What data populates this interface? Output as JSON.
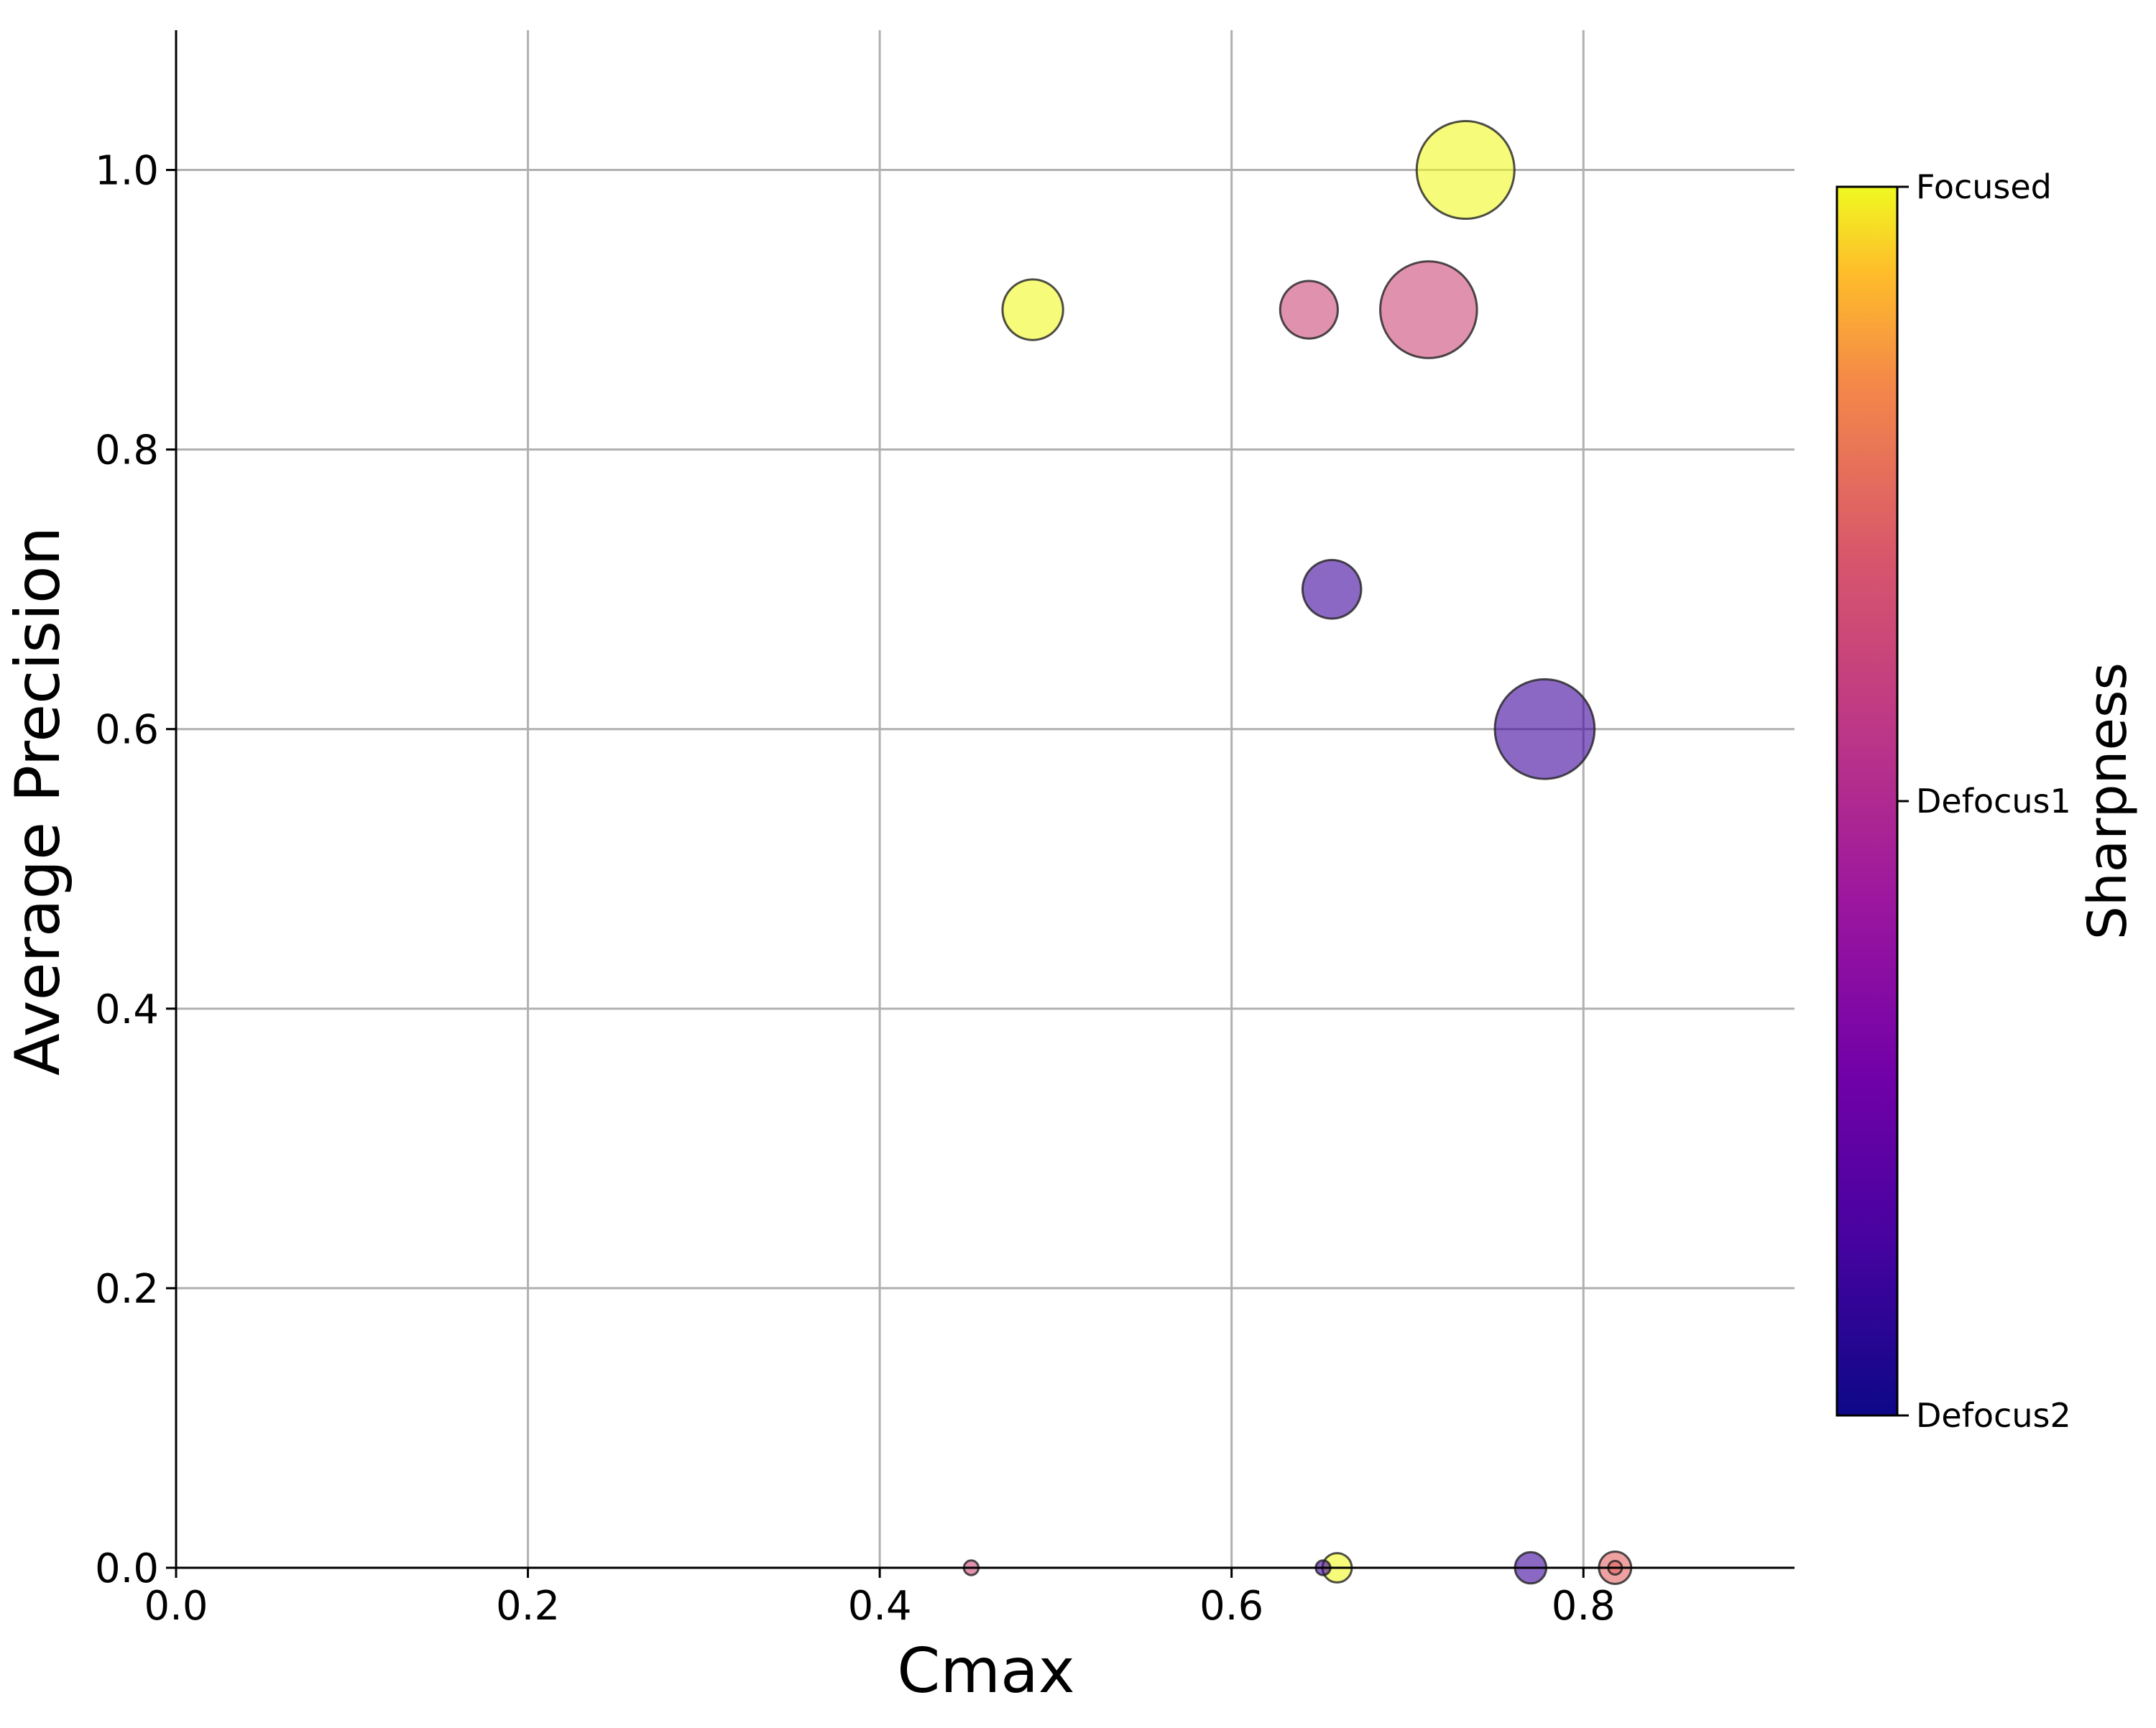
{
  "chart_data": {
    "type": "scatter",
    "xlabel": "Cmax",
    "ylabel": "Average Precision",
    "xlim": [
      0.0,
      0.92
    ],
    "ylim": [
      0.0,
      1.1
    ],
    "xticks": [
      0.0,
      0.2,
      0.4,
      0.6,
      0.8
    ],
    "xtick_labels": [
      "0.0",
      "0.2",
      "0.4",
      "0.6",
      "0.8"
    ],
    "yticks": [
      0.0,
      0.2,
      0.4,
      0.6,
      0.8,
      1.0
    ],
    "ytick_labels": [
      "0.0",
      "0.2",
      "0.4",
      "0.6",
      "0.8",
      "1.0"
    ],
    "grid": true,
    "colorbar": {
      "title": "Sharpness",
      "colormap": "plasma",
      "categories": [
        "Defocus2",
        "Defocus1",
        "Focused"
      ]
    },
    "points": [
      {
        "x": 0.733,
        "y": 1.0,
        "size": 1.0,
        "category": "Focused",
        "color": "#f0f921"
      },
      {
        "x": 0.487,
        "y": 0.9,
        "size": 0.62,
        "category": "Focused",
        "color": "#f0f921"
      },
      {
        "x": 0.644,
        "y": 0.9,
        "size": 0.59,
        "category": "Defocus1",
        "color": "#cc4778"
      },
      {
        "x": 0.712,
        "y": 0.9,
        "size": 0.99,
        "category": "Defocus1",
        "color": "#cc4778"
      },
      {
        "x": 0.657,
        "y": 0.7,
        "size": 0.6,
        "category": "Defocus2",
        "color": "#3d049b"
      },
      {
        "x": 0.778,
        "y": 0.6,
        "size": 1.02,
        "category": "Defocus2",
        "color": "#3d049b"
      },
      {
        "x": 0.452,
        "y": 0.0,
        "size": 0.15,
        "category": "Defocus1",
        "color": "#cc4778"
      },
      {
        "x": 0.652,
        "y": 0.0,
        "size": 0.15,
        "category": "Defocus2",
        "color": "#3d049b"
      },
      {
        "x": 0.66,
        "y": 0.0,
        "size": 0.3,
        "category": "Focused",
        "color": "#f0f921"
      },
      {
        "x": 0.77,
        "y": 0.0,
        "size": 0.32,
        "category": "Defocus2",
        "color": "#3d049b"
      },
      {
        "x": 0.818,
        "y": 0.0,
        "size": 0.33,
        "category": "Defocus1",
        "color": "#e16462"
      },
      {
        "x": 0.818,
        "y": 0.0,
        "size": 0.14,
        "category": "Defocus1",
        "color": "#e16462"
      }
    ]
  }
}
